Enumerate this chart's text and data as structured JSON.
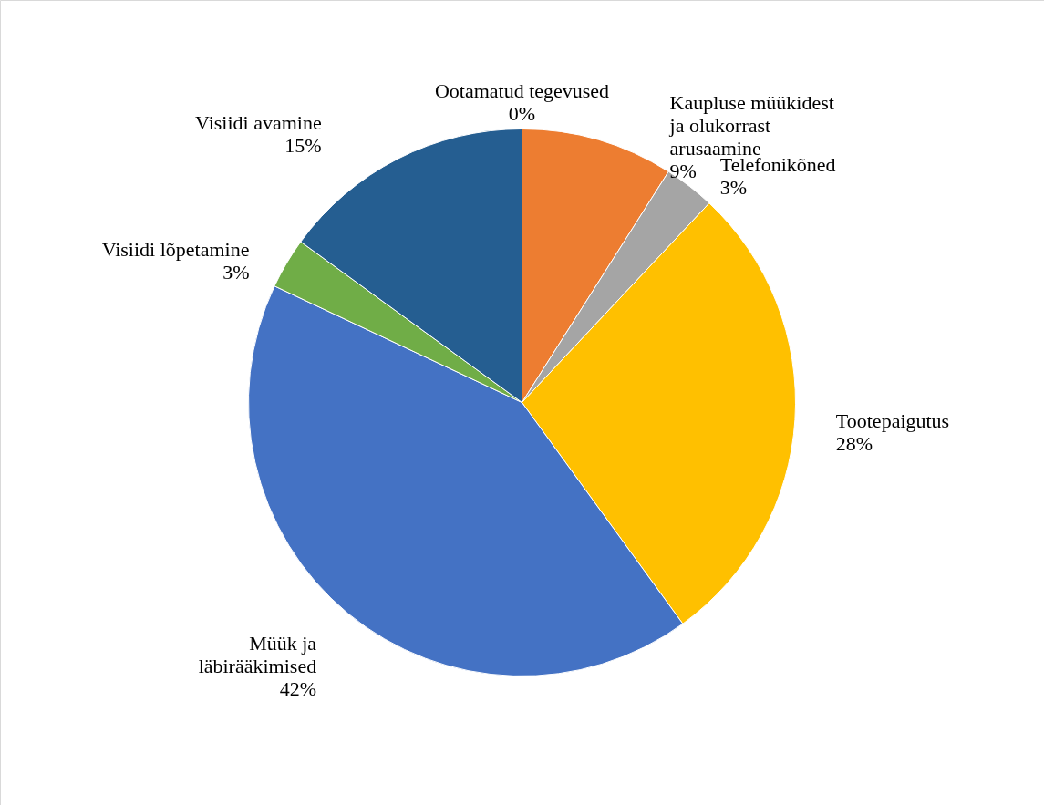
{
  "chart_data": {
    "type": "pie",
    "categories": [
      "Ootamatud tegevused",
      "Kaupluse müükidest ja olukorrast arusaamine",
      "Telefonikõned",
      "Tootepaigutus",
      "Müük ja läbirääkimised",
      "Visiidi lõpetamine",
      "Visiidi avamine"
    ],
    "values": [
      0,
      9,
      3,
      28,
      42,
      3,
      15
    ],
    "colors": [
      "#5b9bd5",
      "#ed7d31",
      "#a5a5a5",
      "#ffc000",
      "#4472c4",
      "#70ad47",
      "#255e91"
    ],
    "value_labels": [
      "0%",
      "9%",
      "3%",
      "28%",
      "42%",
      "3%",
      "15%"
    ]
  }
}
